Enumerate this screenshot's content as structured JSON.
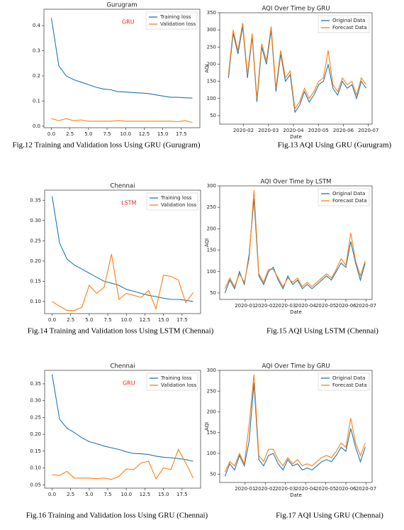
{
  "chart_data": [
    {
      "type": "line",
      "title": "Gurugram",
      "annotation": "GRU",
      "annotation_color": "#e8211b",
      "x": [
        0,
        1,
        2,
        3,
        4,
        5,
        6,
        7,
        8,
        9,
        10,
        11,
        12,
        13,
        14,
        15,
        16,
        17,
        18,
        19
      ],
      "xlim": [
        -1,
        20
      ],
      "xticks": [
        {
          "value": 0,
          "label": "0.0"
        },
        2.5,
        {
          "value": 5,
          "label": "5.0"
        },
        7.5,
        {
          "value": 10,
          "label": "10.0"
        },
        12.5,
        {
          "value": 15,
          "label": "15.0"
        },
        17.5
      ],
      "ylim": [
        -0.006,
        0.465
      ],
      "yticks": [
        {
          "value": 0,
          "label": "0.0"
        },
        0.1,
        0.2,
        0.3,
        0.4
      ],
      "legend": "upper right",
      "series": [
        {
          "name": "Training loss",
          "color": "#1f77b4",
          "values": [
            0.43,
            0.24,
            0.2,
            0.185,
            0.175,
            0.165,
            0.155,
            0.148,
            0.145,
            0.137,
            0.136,
            0.134,
            0.132,
            0.13,
            0.125,
            0.12,
            0.115,
            0.115,
            0.113,
            0.112
          ]
        },
        {
          "name": "Validation loss",
          "color": "#ff7f0e",
          "values": [
            0.03,
            0.022,
            0.03,
            0.022,
            0.025,
            0.02,
            0.02,
            0.02,
            0.02,
            0.022,
            0.02,
            0.02,
            0.02,
            0.02,
            0.02,
            0.02,
            0.02,
            0.018,
            0.022,
            0.015
          ]
        }
      ]
    },
    {
      "type": "line",
      "title": "AQI Over Time by GRU",
      "xlabel": "Date",
      "ylabel": "AQI",
      "x": [
        1.4,
        1.59,
        1.78,
        1.97,
        2.16,
        2.35,
        2.54,
        2.73,
        2.92,
        3.11,
        3.3,
        3.49,
        3.68,
        3.87,
        4.06,
        4.25,
        4.44,
        4.63,
        4.82,
        5.01,
        5.2,
        5.39,
        5.58,
        5.77,
        5.96,
        6.15,
        6.34,
        6.53,
        6.72,
        6.91
      ],
      "xlim": [
        1.05,
        7.15
      ],
      "xticks": [
        {
          "value": 2,
          "label": "2020-02"
        },
        {
          "value": 3,
          "label": "2020-03"
        },
        {
          "value": 4,
          "label": "2020-04"
        },
        {
          "value": 5,
          "label": "2020-05"
        },
        {
          "value": 6,
          "label": "2020-06"
        },
        {
          "value": 7,
          "label": "2020-07"
        }
      ],
      "ylim": [
        25,
        350
      ],
      "yticks": [
        50,
        100,
        150,
        200,
        250,
        300,
        350
      ],
      "legend": "upper right",
      "series": [
        {
          "name": "Original Data",
          "color": "#1f77b4",
          "values": [
            160,
            290,
            230,
            310,
            160,
            280,
            90,
            250,
            200,
            300,
            120,
            230,
            150,
            170,
            60,
            80,
            120,
            90,
            110,
            140,
            150,
            200,
            130,
            110,
            150,
            130,
            140,
            100,
            150,
            130
          ]
        },
        {
          "name": "Forecast Data",
          "color": "#ff7f0e",
          "values": [
            170,
            300,
            240,
            320,
            170,
            290,
            100,
            260,
            210,
            310,
            130,
            240,
            160,
            180,
            70,
            90,
            130,
            100,
            120,
            150,
            160,
            240,
            140,
            120,
            160,
            140,
            150,
            110,
            160,
            140
          ]
        }
      ]
    },
    {
      "type": "line",
      "title": "Chennai",
      "annotation": "LSTM",
      "annotation_color": "#e8211b",
      "x": [
        0,
        1,
        2,
        3,
        4,
        5,
        6,
        7,
        8,
        9,
        10,
        11,
        12,
        13,
        14,
        15,
        16,
        17,
        18,
        19
      ],
      "xlim": [
        -1,
        20
      ],
      "xticks": [
        {
          "value": 0,
          "label": "0.0"
        },
        2.5,
        {
          "value": 5,
          "label": "5.0"
        },
        7.5,
        {
          "value": 10,
          "label": "10.0"
        },
        12.5,
        {
          "value": 15,
          "label": "15.0"
        },
        17.5
      ],
      "ylim": [
        0.07,
        0.375
      ],
      "yticks": [
        {
          "value": 0.1,
          "label": "0.10"
        },
        0.15,
        {
          "value": 0.2,
          "label": "0.20"
        },
        0.25,
        {
          "value": 0.3,
          "label": "0.30"
        },
        0.35
      ],
      "legend": "upper right",
      "series": [
        {
          "name": "Training loss",
          "color": "#1f77b4",
          "values": [
            0.36,
            0.245,
            0.205,
            0.19,
            0.18,
            0.17,
            0.16,
            0.15,
            0.145,
            0.14,
            0.13,
            0.125,
            0.12,
            0.115,
            0.112,
            0.108,
            0.105,
            0.105,
            0.103,
            0.1
          ]
        },
        {
          "name": "Validation loss",
          "color": "#ff7f0e",
          "values": [
            0.1,
            0.088,
            0.078,
            0.078,
            0.085,
            0.14,
            0.12,
            0.135,
            0.217,
            0.105,
            0.12,
            0.115,
            0.11,
            0.127,
            0.082,
            0.165,
            0.162,
            0.153,
            0.097,
            0.122
          ]
        }
      ]
    },
    {
      "type": "line",
      "title": "AQI Over Time by LSTM",
      "xlabel": "Date",
      "ylabel": "AQI",
      "x": [
        0,
        0.24,
        0.48,
        0.72,
        0.96,
        1.2,
        1.44,
        1.68,
        1.92,
        2.16,
        2.4,
        2.64,
        2.88,
        3.12,
        3.36,
        3.6,
        3.84,
        4.08,
        4.32,
        4.56,
        4.8,
        5.04,
        5.28,
        5.52,
        5.76,
        6,
        6.24,
        6.48,
        6.72,
        6.96
      ],
      "xlim": [
        -0.26,
        7.3
      ],
      "xticks": [
        {
          "value": 1,
          "label": "2020-01"
        },
        {
          "value": 2,
          "label": "2020-02"
        },
        {
          "value": 3,
          "label": "2020-03"
        },
        {
          "value": 4,
          "label": "2020-04"
        },
        {
          "value": 5,
          "label": "2020-05"
        },
        {
          "value": 6,
          "label": "2020-06"
        },
        {
          "value": 7,
          "label": "2020-07"
        }
      ],
      "ylim": [
        35,
        300
      ],
      "yticks": [
        50,
        100,
        150,
        200,
        250,
        300
      ],
      "legend": "upper right",
      "series": [
        {
          "name": "Original Data",
          "color": "#1f77b4",
          "values": [
            50,
            80,
            60,
            100,
            70,
            140,
            270,
            90,
            70,
            100,
            110,
            80,
            60,
            90,
            70,
            80,
            60,
            70,
            60,
            70,
            80,
            90,
            80,
            100,
            120,
            110,
            170,
            120,
            80,
            120
          ]
        },
        {
          "name": "Forecast Data",
          "color": "#ff7f0e",
          "values": [
            60,
            85,
            65,
            95,
            75,
            130,
            290,
            95,
            75,
            105,
            105,
            85,
            65,
            85,
            75,
            85,
            65,
            75,
            65,
            75,
            85,
            95,
            85,
            105,
            130,
            115,
            190,
            125,
            90,
            125
          ]
        }
      ]
    },
    {
      "type": "line",
      "title": "Chennai",
      "annotation": "GRU",
      "annotation_color": "#e8211b",
      "x": [
        0,
        1,
        2,
        3,
        4,
        5,
        6,
        7,
        8,
        9,
        10,
        11,
        12,
        13,
        14,
        15,
        16,
        17,
        18,
        19
      ],
      "xlim": [
        -1,
        20
      ],
      "xticks": [
        {
          "value": 0,
          "label": "0.0"
        },
        2.5,
        {
          "value": 5,
          "label": "5.0"
        },
        7.5,
        {
          "value": 10,
          "label": "10.0"
        },
        12.5,
        {
          "value": 15,
          "label": "15.0"
        },
        17.5
      ],
      "ylim": [
        0.04,
        0.39
      ],
      "yticks": [
        0.05,
        {
          "value": 0.1,
          "label": "0.10"
        },
        0.15,
        {
          "value": 0.2,
          "label": "0.20"
        },
        0.25,
        {
          "value": 0.3,
          "label": "0.30"
        },
        0.35
      ],
      "legend": "upper right",
      "series": [
        {
          "name": "Training loss",
          "color": "#1f77b4",
          "values": [
            0.378,
            0.245,
            0.218,
            0.205,
            0.19,
            0.178,
            0.172,
            0.165,
            0.16,
            0.155,
            0.148,
            0.143,
            0.142,
            0.14,
            0.135,
            0.132,
            0.13,
            0.128,
            0.125,
            0.12
          ]
        },
        {
          "name": "Validation loss",
          "color": "#ff7f0e",
          "values": [
            0.08,
            0.078,
            0.09,
            0.07,
            0.07,
            0.07,
            0.068,
            0.07,
            0.066,
            0.075,
            0.097,
            0.095,
            0.115,
            0.12,
            0.068,
            0.1,
            0.095,
            0.155,
            0.115,
            0.07
          ]
        }
      ]
    },
    {
      "type": "line",
      "title": "AQI Over Time by GRU",
      "xlabel": "Date",
      "ylabel": "AQI",
      "x": [
        0,
        0.24,
        0.48,
        0.72,
        0.96,
        1.2,
        1.44,
        1.68,
        1.92,
        2.16,
        2.4,
        2.64,
        2.88,
        3.12,
        3.36,
        3.6,
        3.84,
        4.08,
        4.32,
        4.56,
        4.8,
        5.04,
        5.28,
        5.52,
        5.76,
        6,
        6.24,
        6.48,
        6.72,
        6.96
      ],
      "xlim": [
        -0.26,
        7.3
      ],
      "xticks": [
        {
          "value": 1,
          "label": "2020-01"
        },
        {
          "value": 2,
          "label": "2020-02"
        },
        {
          "value": 3,
          "label": "2020-03"
        },
        {
          "value": 4,
          "label": "2020-04"
        },
        {
          "value": 5,
          "label": "2020-05"
        },
        {
          "value": 6,
          "label": "2020-06"
        },
        {
          "value": 7,
          "label": "2020-07"
        }
      ],
      "ylim": [
        30,
        300
      ],
      "yticks": [
        50,
        100,
        150,
        200,
        250,
        300
      ],
      "legend": "upper right",
      "series": [
        {
          "name": "Original Data",
          "color": "#1f77b4",
          "values": [
            45,
            75,
            60,
            95,
            70,
            130,
            270,
            85,
            70,
            95,
            100,
            75,
            60,
            85,
            70,
            75,
            60,
            65,
            60,
            70,
            80,
            85,
            80,
            95,
            115,
            105,
            160,
            115,
            80,
            115
          ]
        },
        {
          "name": "Forecast Data",
          "color": "#ff7f0e",
          "values": [
            55,
            80,
            70,
            100,
            75,
            170,
            290,
            95,
            80,
            110,
            110,
            85,
            70,
            90,
            75,
            85,
            70,
            75,
            70,
            80,
            90,
            95,
            90,
            105,
            125,
            115,
            185,
            125,
            95,
            125
          ]
        }
      ]
    }
  ],
  "captions": [
    "Fig.12 Training and Validation loss Using GRU (Gurugram)",
    "Fig.13 AQI Using GRU (Gurugram)",
    "Fig.14 Training and Validation loss Using LSTM (Chennai)",
    "Fig.15 AQI Using LSTM (Chennai)",
    "Fig.16 Training and Validation loss Using GRU (Chennai)",
    "Fig.17 AQI Using GRU (Chennai)"
  ]
}
